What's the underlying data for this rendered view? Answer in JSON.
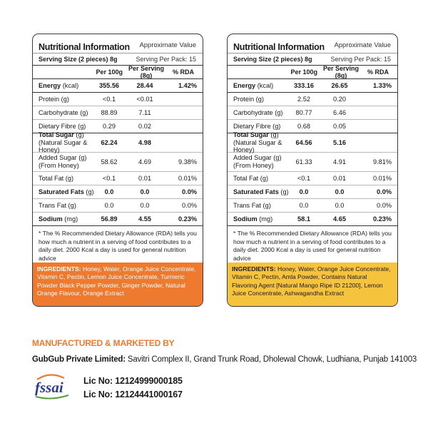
{
  "colors": {
    "orange": "#ee7a30",
    "yellow": "#f6c33d",
    "border": "#3a3a3a",
    "fssai_blue": "#2b3d8f"
  },
  "labels": [
    {
      "title": "Nutritional Information",
      "approx": "Approximate Value",
      "serving_size": "Serving Size (2 pieces) 8g",
      "serving_per_pack": "Serving Per Pack: 15",
      "col_per100": "Per 100g",
      "col_serving": "Per Serving (8g)",
      "col_rda": "% RDA",
      "rows": [
        {
          "name": "Energy",
          "unit": "(kcal)",
          "p100": "355.56",
          "serv": "28.44",
          "rda": "1.42%"
        },
        {
          "name": "Protein (g)",
          "unit": "",
          "p100": "<0.1",
          "serv": "<0.01",
          "rda": ""
        },
        {
          "name": "Carbohydrate (g)",
          "unit": "",
          "p100": "88.89",
          "serv": "7.11",
          "rda": ""
        },
        {
          "name": "Dietary Fibre (g)",
          "unit": "",
          "p100": "0.29",
          "serv": "0.02",
          "rda": ""
        },
        {
          "name": "Total Sugar",
          "unit": "(g)",
          "sub": "(Natural Sugar & Honey)",
          "p100": "62.24",
          "serv": "4.98",
          "rda": ""
        },
        {
          "name": "Added Sugar (g)",
          "unit": "",
          "sub": "(From Honey)",
          "p100": "58.62",
          "serv": "4.69",
          "rda": "9.38%"
        },
        {
          "name": "Total Fat (g)",
          "unit": "",
          "p100": "<0.1",
          "serv": "0.01",
          "rda": "0.01%"
        },
        {
          "name": "Saturated Fats",
          "unit": "(g)",
          "p100": "0.0",
          "serv": "0.0",
          "rda": "0.0%"
        },
        {
          "name": "Trans Fat (g)",
          "unit": "",
          "p100": "0.0",
          "serv": "0.0",
          "rda": "0.0%"
        },
        {
          "name": "Sodium",
          "unit": "(mg)",
          "p100": "56.89",
          "serv": "4.55",
          "rda": "0.23%"
        }
      ],
      "footnote": "* The % Recommended Dietary Allowance (RDA) tells you how much a nutrient in a serving of food contributes to a daily diet. 2000 Kcal a day is used for general nutrition advice",
      "ingredients_label": "INGREDIENTS:",
      "ingredients": " Honey, Water, Orange Juice Concentrate, Vitamin C, Pectin, Lemon Juice Concentrate, Turmeric Powder Black Pepper Powder, Ginger Powder, Natural Orange Flavour, Orange Extract"
    },
    {
      "title": "Nutritional Information",
      "approx": "Approximate Value",
      "serving_size": "Serving Size (2 pieces) 8g",
      "serving_per_pack": "Serving Per Pack: 15",
      "col_per100": "Per 100g",
      "col_serving": "Per Serving (8g)",
      "col_rda": "% RDA",
      "rows": [
        {
          "name": "Energy",
          "unit": "(kcal)",
          "p100": "333.16",
          "serv": "26.65",
          "rda": "1.33%"
        },
        {
          "name": "Protein (g)",
          "unit": "",
          "p100": "2.52",
          "serv": "0.20",
          "rda": ""
        },
        {
          "name": "Carbohydrate (g)",
          "unit": "",
          "p100": "80.77",
          "serv": "6.46",
          "rda": ""
        },
        {
          "name": "Dietary Fibre (g)",
          "unit": "",
          "p100": "0.68",
          "serv": "0.05",
          "rda": ""
        },
        {
          "name": "Total Sugar",
          "unit": "(g)",
          "sub": "(Natural Sugar & Honey)",
          "p100": "64.56",
          "serv": "5.16",
          "rda": ""
        },
        {
          "name": "Added Sugar (g)",
          "unit": "",
          "sub": "(From Honey)",
          "p100": "61.33",
          "serv": "4.91",
          "rda": "9.81%"
        },
        {
          "name": "Total Fat (g)",
          "unit": "",
          "p100": "<0.1",
          "serv": "0.01",
          "rda": "0.01%"
        },
        {
          "name": "Saturated Fats",
          "unit": "(g)",
          "p100": "0.0",
          "serv": "0.0",
          "rda": "0.0%"
        },
        {
          "name": "Trans Fat (g)",
          "unit": "",
          "p100": "0.0",
          "serv": "0.0",
          "rda": "0.0%"
        },
        {
          "name": "Sodium",
          "unit": "(mg)",
          "p100": "58.1",
          "serv": "4.65",
          "rda": "0.23%"
        }
      ],
      "footnote": "* The % Recommended Dietary Allowance (RDA) tells you how much a nutrient in a serving of food contributes to a daily diet. 2000 Kcal a day is used for general nutrition advice",
      "ingredients_label": "INGREDIENTS:",
      "ingredients": " Honey, Water, Orange Juice Concentrate, Vitamin C, Pectin, Amla Powder, Contains Natural Flavoring Agent [Natural Mango Ripe ID 21200], Lemon Juice Concentrate, Ashwagandha Extract"
    }
  ],
  "manufacturer": {
    "heading": "MANUFACTURED & MARKETED BY",
    "company": "GubGub Private Limited:",
    "address": " Savitri Complex II, Grand Trunk Road, Dholewal Chowk, Ludhiana, Punjab 141003",
    "fssai_logo": "fssai",
    "lic1": "Lic No: 12124999000185",
    "lic2": "Lic No: 12124441000167"
  }
}
